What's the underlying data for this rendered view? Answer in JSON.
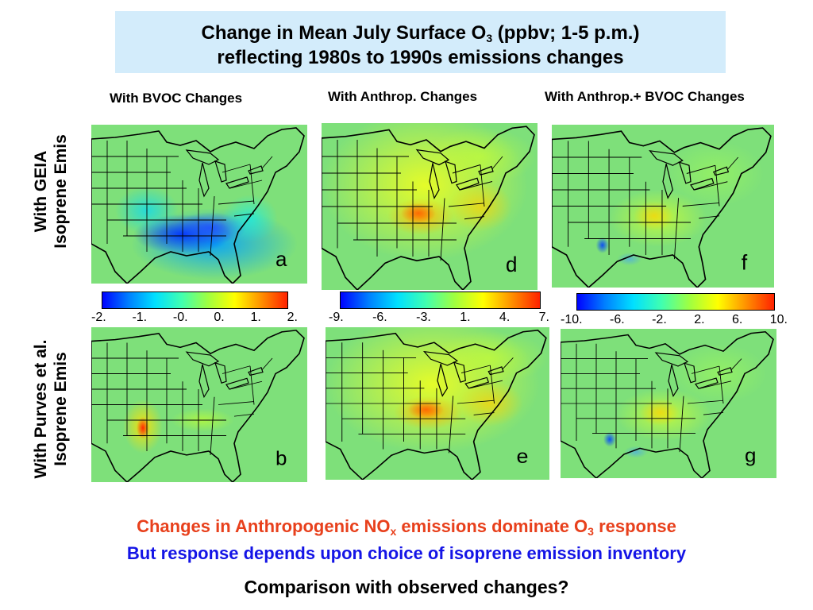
{
  "title": {
    "line1_pre": "Change in Mean July Surface O",
    "line1_sub": "3",
    "line1_post": " (ppbv; 1-5 p.m.)",
    "line2": "reflecting 1980s to 1990s emissions changes"
  },
  "columns": [
    "With BVOC Changes",
    "With Anthrop. Changes",
    "With Anthrop.+ BVOC Changes"
  ],
  "rows": [
    {
      "line1": "With GEIA",
      "line2": "Isoprene Emis"
    },
    {
      "line1": "With Purves et al.",
      "line2": "Isoprene Emis"
    }
  ],
  "panels": {
    "a": {
      "letter": "a",
      "pattern": "blue-southeast"
    },
    "b": {
      "letter": "b",
      "pattern": "red-spot-texas"
    },
    "d": {
      "letter": "d",
      "pattern": "yellow-orange-east"
    },
    "e": {
      "letter": "e",
      "pattern": "yellow-orange-east"
    },
    "f": {
      "letter": "f",
      "pattern": "green-mixed"
    },
    "g": {
      "letter": "g",
      "pattern": "green-mixed"
    }
  },
  "colorbars": [
    {
      "ticks": [
        "-2.",
        "-1.",
        "-0.",
        "0.",
        "1.",
        "2."
      ]
    },
    {
      "ticks": [
        "-9.",
        "-6.",
        "-3.",
        "1.",
        "4.",
        "7."
      ]
    },
    {
      "ticks": [
        "-10.",
        "-6.",
        "-2.",
        "2.",
        "6.",
        "10."
      ]
    }
  ],
  "colormap": [
    "#0000ff",
    "#0080ff",
    "#00e0ff",
    "#40ffb0",
    "#a0ff40",
    "#ffff00",
    "#ff9000",
    "#ff2000"
  ],
  "bottom": {
    "line1_pre": "Changes in Anthropogenic NO",
    "line1_sub1": "x",
    "line1_mid": " emissions dominate O",
    "line1_sub2": "3",
    "line1_post": " response",
    "line2": "But response depends upon choice of isoprene emission inventory",
    "line3": "Comparison with observed changes?"
  },
  "colors": {
    "title_bg": "#d3ecfb",
    "red_text": "#e8401c",
    "blue_text": "#1414e6",
    "map_bg": "#7ee07a"
  }
}
